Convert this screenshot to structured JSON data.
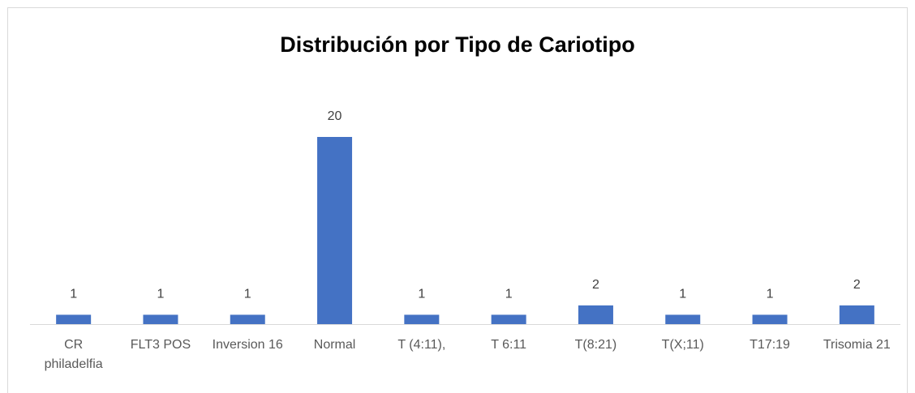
{
  "chart_data": {
    "type": "bar",
    "title": "Distribución por Tipo de Cariotipo",
    "categories": [
      "CR philadelfia",
      "FLT3 POS",
      "Inversion 16",
      "Normal",
      "T (4:11),",
      "T 6:11",
      "T(8:21)",
      "T(X;11)",
      "T17:19",
      "Trisomia 21"
    ],
    "values": [
      1,
      1,
      1,
      20,
      1,
      1,
      2,
      1,
      1,
      2
    ],
    "color": "#4472c4"
  }
}
